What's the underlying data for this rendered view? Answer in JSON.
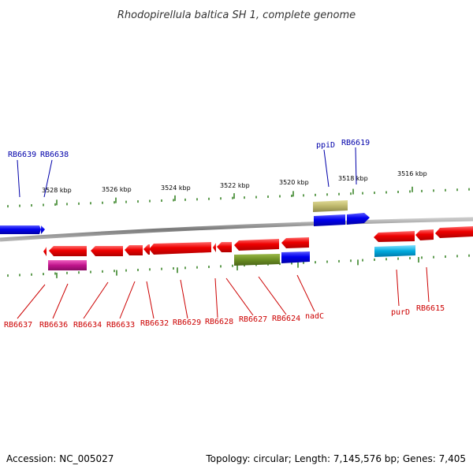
{
  "title": "Rhodopirellula baltica SH 1, complete genome",
  "footer": {
    "accession": "Accession: NC_005027",
    "summary": "Topology: circular; Length: 7,145,576 bp; Genes: 7,405"
  },
  "colors": {
    "backbone": "#8a8a8a",
    "ticks": "#2e7d1a",
    "forward_gene": "#0000e6",
    "reverse_gene": "#e60000",
    "rna_olive": "#6b8e23",
    "rna_khaki": "#bdb76b",
    "rna_magenta": "#c0148c",
    "rna_cyan": "#00aadd",
    "forward_label": "#0000aa",
    "reverse_label": "#cc0000"
  },
  "scale": {
    "unit": "kbp",
    "labels": [
      "3528 kbp",
      "3526 kbp",
      "3524 kbp",
      "3522 kbp",
      "3520 kbp",
      "3518 kbp",
      "3516 kbp"
    ]
  },
  "labels": {
    "forward": [
      "RB6639",
      "RB6638",
      "ppiD",
      "RB6619"
    ],
    "reverse": [
      "RB6637",
      "RB6636",
      "RB6634",
      "RB6633",
      "RB6632",
      "RB6629",
      "RB6628",
      "RB6627",
      "RB6624",
      "nadC",
      "purD",
      "RB6615"
    ]
  }
}
